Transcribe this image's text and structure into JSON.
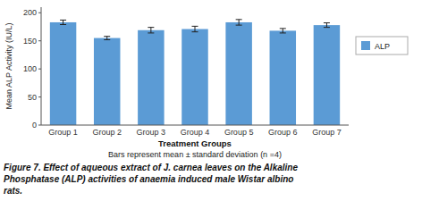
{
  "chart_data": {
    "type": "bar",
    "ylabel": "Mean ALP Activity (IU/L)",
    "xlabel": "Treatment Groups",
    "subtitle": "Bars represent mean ± standard deviation (n =4)",
    "annotations": [
      "Figure 7. Effect of aqueous extract of J. carnea leaves on the Alkaline",
      "Phosphatase (ALP) activities of anaemia induced male Wistar albino",
      "rats."
    ],
    "categories": [
      "Group 1",
      "Group 2",
      "Group 3",
      "Group 4",
      "Group 5",
      "Group 6",
      "Group 7"
    ],
    "series": [
      {
        "name": "ALP",
        "color": "#5B9BD5",
        "values": [
          183,
          155,
          169,
          171,
          183,
          168,
          178
        ],
        "errors": [
          4,
          3,
          5,
          5,
          5,
          4,
          4
        ]
      }
    ],
    "ylim": [
      0,
      210
    ],
    "yticks": [
      0,
      50,
      100,
      150,
      200
    ],
    "grid": false,
    "legend": "right"
  }
}
